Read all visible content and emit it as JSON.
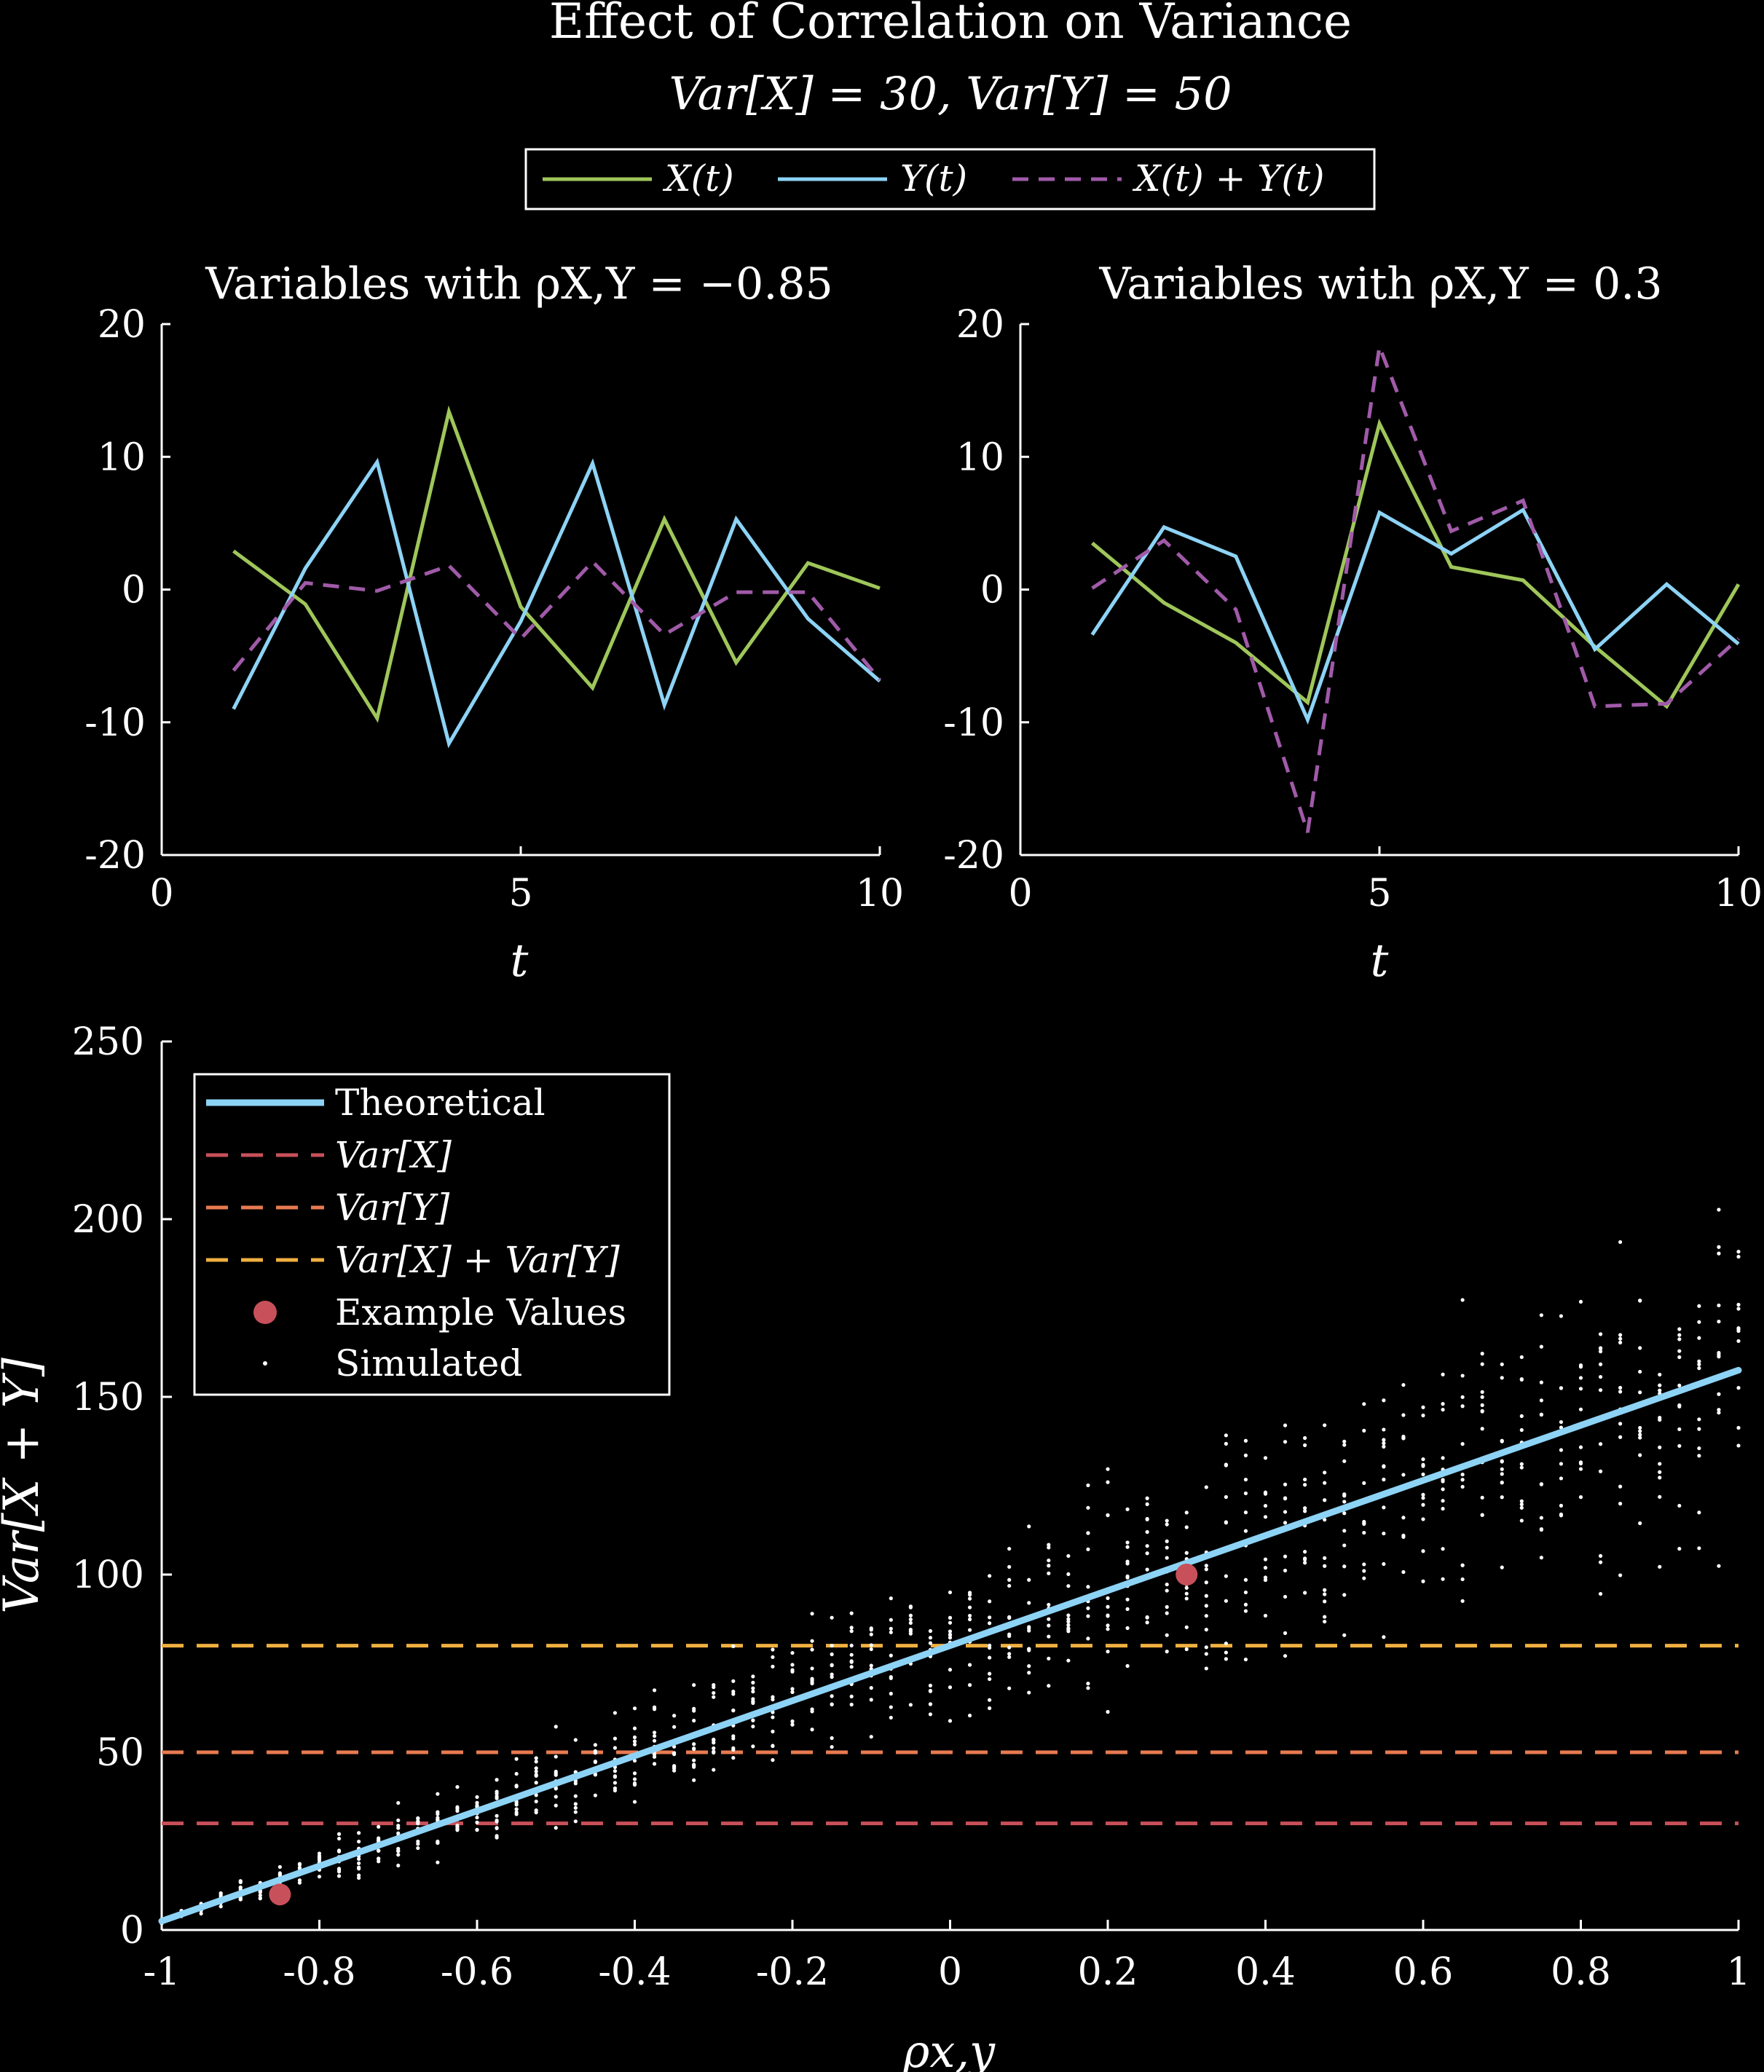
{
  "figure": {
    "title": "Effect of Correlation on Variance",
    "subtitle": "Var[X] = 30, Var[Y] = 50",
    "colors": {
      "background": "#000000",
      "x_series": "#9fc65a",
      "y_series": "#8dd3f5",
      "sum_series": "#a05aa8",
      "var_x": "#c8505a",
      "var_y": "#e87a50",
      "var_sum": "#f0b040",
      "example_values": "#c8505a",
      "simulated": "#ffffff",
      "axes": "#ffffff"
    }
  },
  "top_legend": {
    "items": [
      {
        "label": "X(t)",
        "style": "solid",
        "color": "#9fc65a"
      },
      {
        "label": "Y(t)",
        "style": "solid",
        "color": "#8dd3f5"
      },
      {
        "label": "X(t) + Y(t)",
        "style": "dashed",
        "color": "#a05aa8"
      }
    ]
  },
  "bottom_legend": {
    "items": [
      {
        "label": "Theoretical",
        "kind": "line-solid-thick",
        "color": "#8dd3f5"
      },
      {
        "label": "Var[X]",
        "kind": "line-dashed",
        "color": "#c8505a"
      },
      {
        "label": "Var[Y]",
        "kind": "line-dashed",
        "color": "#e87a50"
      },
      {
        "label": "Var[X] + Var[Y]",
        "kind": "line-dashed",
        "color": "#f0b040"
      },
      {
        "label": "Example Values",
        "kind": "marker-large",
        "color": "#c8505a"
      },
      {
        "label": "Simulated",
        "kind": "marker-dot",
        "color": "#ffffff"
      }
    ]
  },
  "chart_data": [
    {
      "type": "line",
      "title": "Variables with ρX,Y = −0.85",
      "xlabel": "t",
      "ylabel": "",
      "xlim": [
        0,
        10
      ],
      "ylim": [
        -20,
        20
      ],
      "xticks": [
        0,
        5,
        10
      ],
      "yticks": [
        -20,
        -10,
        0,
        10,
        20
      ],
      "x": [
        1,
        2,
        3,
        4,
        5,
        6,
        7,
        8,
        9,
        10
      ],
      "series": [
        {
          "name": "X(t)",
          "values": [
            2.9,
            -1.1,
            -9.7,
            13.4,
            -1.3,
            -7.4,
            5.3,
            -5.5,
            2.0,
            0.1
          ]
        },
        {
          "name": "Y(t)",
          "values": [
            -9.0,
            1.6,
            9.6,
            -11.6,
            -2.4,
            9.5,
            -8.7,
            5.3,
            -2.2,
            -6.9
          ]
        },
        {
          "name": "X(t) + Y(t)",
          "values": [
            -6.1,
            0.5,
            -0.1,
            1.8,
            -3.7,
            2.1,
            -3.4,
            -0.2,
            -0.2,
            -6.8
          ]
        }
      ],
      "grid": false
    },
    {
      "type": "line",
      "title": "Variables with ρX,Y = 0.3",
      "xlabel": "t",
      "ylabel": "",
      "xlim": [
        0,
        10
      ],
      "ylim": [
        -20,
        20
      ],
      "xticks": [
        0,
        5,
        10
      ],
      "yticks": [
        -20,
        -10,
        0,
        10,
        20
      ],
      "x": [
        1,
        2,
        3,
        4,
        5,
        6,
        7,
        8,
        9,
        10
      ],
      "series": [
        {
          "name": "X(t)",
          "values": [
            3.5,
            -1.0,
            -4.0,
            -8.5,
            12.5,
            1.7,
            0.7,
            -4.3,
            -8.8,
            0.4
          ]
        },
        {
          "name": "Y(t)",
          "values": [
            -3.4,
            4.7,
            2.5,
            -9.8,
            5.8,
            2.7,
            6.0,
            -4.5,
            0.4,
            -4.1
          ]
        },
        {
          "name": "X(t) + Y(t)",
          "values": [
            0.1,
            3.7,
            -1.5,
            -18.3,
            18.3,
            4.4,
            6.7,
            -8.8,
            -8.6,
            -3.7
          ]
        }
      ],
      "grid": false
    },
    {
      "type": "scatter",
      "title": "",
      "xlabel": "ρx,y",
      "ylabel": "Var[X + Y]",
      "xlim": [
        -1,
        1
      ],
      "ylim": [
        0,
        250
      ],
      "xticks": [
        -1,
        -0.8,
        -0.6,
        -0.4,
        -0.2,
        0,
        0.2,
        0.4,
        0.6,
        0.8,
        1
      ],
      "yticks": [
        0,
        50,
        100,
        150,
        200,
        250
      ],
      "theoretical": {
        "name": "Theoretical",
        "x": [
          -1,
          1
        ],
        "values": [
          2.5,
          157.5
        ]
      },
      "reference_lines": [
        {
          "name": "Var[X]",
          "y": 30
        },
        {
          "name": "Var[Y]",
          "y": 50
        },
        {
          "name": "Var[X] + Var[Y]",
          "y": 80
        }
      ],
      "example_values": {
        "name": "Example Values",
        "x": [
          -0.85,
          0.3
        ],
        "values": [
          10,
          100
        ]
      },
      "simulated": {
        "name": "Simulated",
        "rho_steps": 81,
        "samples_per_rho": 12,
        "description_in_data": false
      },
      "legend_position": "top-left",
      "grid": false
    }
  ],
  "tick_labels": {
    "top_y": [
      "20",
      "10",
      "0",
      "-10",
      "-20"
    ],
    "top_x": [
      "0",
      "5",
      "10"
    ],
    "bottom_y": [
      "250",
      "200",
      "150",
      "100",
      "50",
      "0"
    ],
    "bottom_x": [
      "-1",
      "-0.8",
      "-0.6",
      "-0.4",
      "-0.2",
      "0",
      "0.2",
      "0.4",
      "0.6",
      "0.8",
      "1"
    ]
  }
}
